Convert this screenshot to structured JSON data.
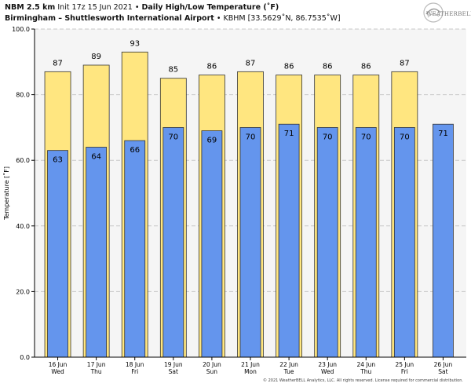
{
  "header": {
    "model": "NBM 2.5 km",
    "init": "Init 17z 15 Jun 2021",
    "sep1": "•",
    "product": "Daily High/Low Temperature (˚F)",
    "location": "Birmingham – Shuttlesworth International Airport",
    "sep2": "•",
    "station": "KBHM [33.5629˚N, 86.7535˚W]"
  },
  "logo": {
    "text": "WEATHERBELL",
    "icon": "weatherbell-logo-icon"
  },
  "footer": "© 2021 WeatherBELL Analytics, LLC. All rights reserved. License required for commercial distribution.",
  "chart_data": {
    "type": "bar",
    "ylabel": "Temperature [˚F]",
    "ylim": [
      0,
      100
    ],
    "yticks": [
      "0.0",
      "20.0",
      "40.0",
      "60.0",
      "80.0",
      "100.0"
    ],
    "grid": true,
    "categories": [
      "16 Jun",
      "17 Jun",
      "18 Jun",
      "19 Jun",
      "20 Jun",
      "21 Jun",
      "22 Jun",
      "23 Jun",
      "24 Jun",
      "25 Jun",
      "26 Jun"
    ],
    "weekdays": [
      "Wed",
      "Thu",
      "Fri",
      "Sat",
      "Sun",
      "Mon",
      "Tue",
      "Wed",
      "Thu",
      "Fri",
      "Sat"
    ],
    "series": [
      {
        "key": "high",
        "values": [
          87,
          89,
          93,
          85,
          86,
          87,
          86,
          86,
          86,
          87,
          null
        ],
        "color": "#ffe680"
      },
      {
        "key": "low",
        "values": [
          63,
          64,
          66,
          70,
          69,
          70,
          71,
          70,
          70,
          70,
          71
        ],
        "color": "#6495ed"
      }
    ]
  }
}
